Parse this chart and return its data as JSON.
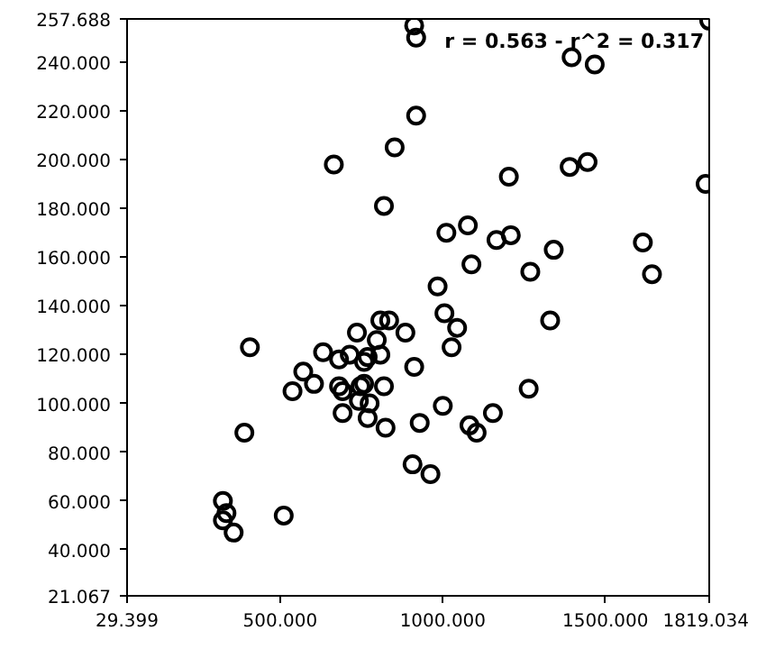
{
  "chart_data": {
    "type": "scatter",
    "marker": "circle",
    "grid": false,
    "annotations": [
      "r = 0.563 - r^2 = 0.317"
    ],
    "xlim": [
      29.399,
      1819.034
    ],
    "ylim": [
      21.067,
      257.688
    ],
    "xticks": [
      {
        "value": 29.399,
        "label": "29.399"
      },
      {
        "value": 500,
        "label": "500.000"
      },
      {
        "value": 1000,
        "label": "1000.000"
      },
      {
        "value": 1500,
        "label": "1500.000"
      },
      {
        "value": 1819.034,
        "label": "1819.034"
      }
    ],
    "yticks": [
      {
        "value": 21.067,
        "label": "21.067"
      },
      {
        "value": 40,
        "label": "40.000"
      },
      {
        "value": 60,
        "label": "60.000"
      },
      {
        "value": 80,
        "label": "80.000"
      },
      {
        "value": 100,
        "label": "100.000"
      },
      {
        "value": 120,
        "label": "120.000"
      },
      {
        "value": 140,
        "label": "140.000"
      },
      {
        "value": 160,
        "label": "160.000"
      },
      {
        "value": 180,
        "label": "180.000"
      },
      {
        "value": 200,
        "label": "200.000"
      },
      {
        "value": 220,
        "label": "220.000"
      },
      {
        "value": 240,
        "label": "240.000"
      },
      {
        "value": 257.688,
        "label": "257.688"
      }
    ],
    "series": [
      {
        "color": "#000000",
        "x": [
          912,
          918,
          1819,
          1808,
          1396,
          1467,
          918,
          852,
          665,
          1203,
          1390,
          1445,
          819,
          1011,
          1077,
          1165,
          1209,
          1341,
          1615,
          1643,
          1088,
          1269,
          984,
          1005,
          1044,
          1330,
          1027,
          835,
          808,
          736,
          797,
          885,
          407,
          632,
          681,
          714,
          758,
          769,
          808,
          912,
          571,
          538,
          604,
          681,
          692,
          747,
          758,
          819,
          1264,
          742,
          775,
          692,
          769,
          824,
          929,
          1000,
          1082,
          1104,
          1154,
          390,
          907,
          962,
          324,
          335,
          324,
          357,
          511
        ],
        "values": [
          255,
          250,
          257,
          190,
          242,
          239,
          218,
          205,
          198,
          193,
          197,
          199,
          181,
          170,
          173,
          167,
          169,
          163,
          166,
          153,
          157,
          154,
          148,
          137,
          131,
          134,
          123,
          134,
          134,
          129,
          126,
          129,
          123,
          121,
          118,
          120,
          117,
          119,
          120,
          115,
          113,
          105,
          108,
          107,
          105,
          107,
          108,
          107,
          106,
          101,
          100,
          96,
          94,
          90,
          92,
          99,
          91,
          88,
          96,
          88,
          75,
          71,
          60,
          55,
          52,
          47,
          54
        ]
      }
    ]
  }
}
